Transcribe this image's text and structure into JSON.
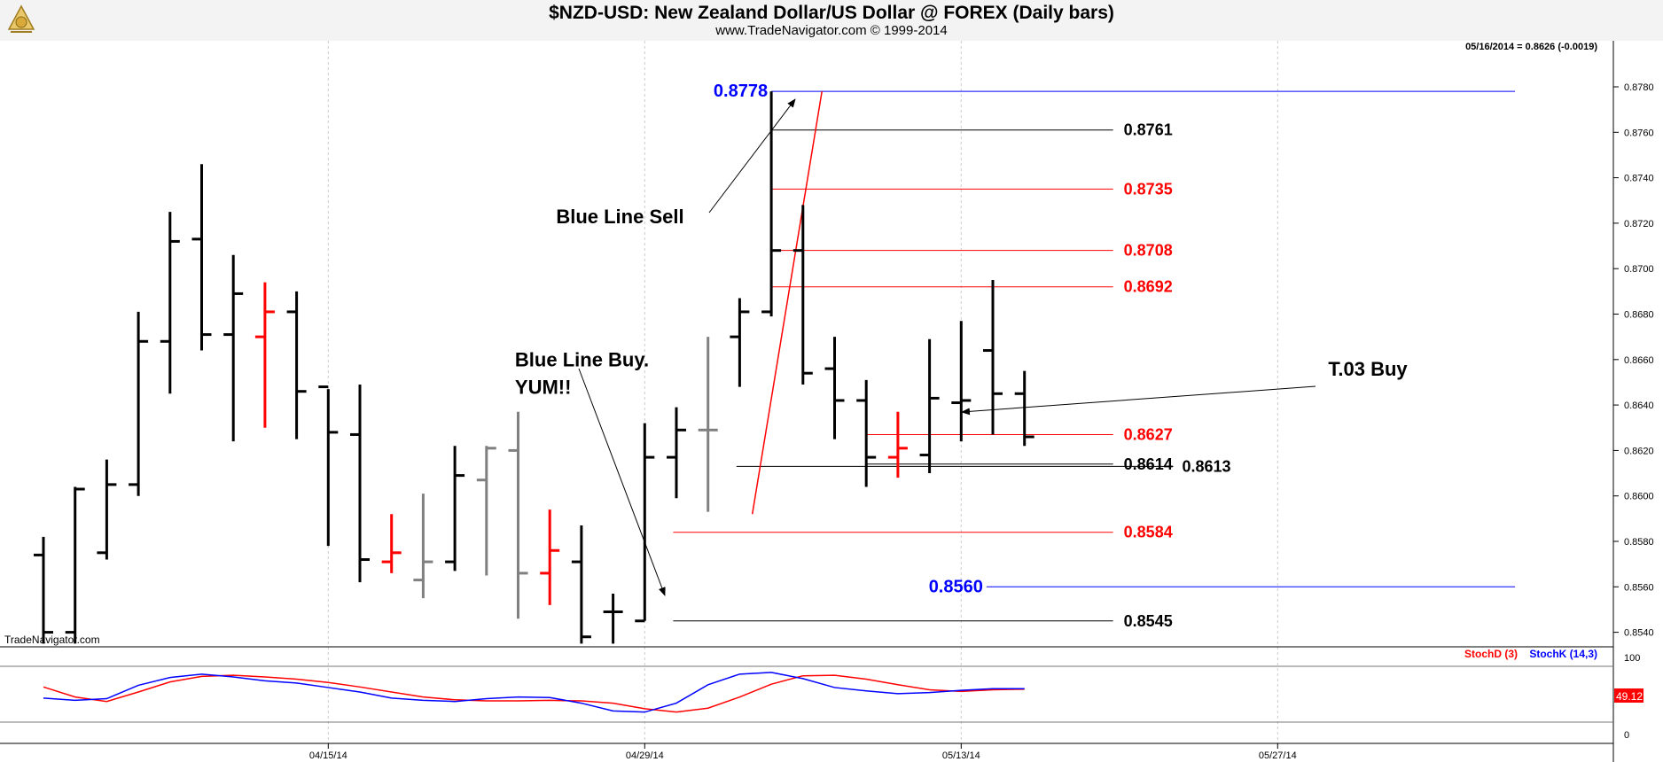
{
  "header": {
    "title": "$NZD-USD:  New Zealand Dollar/US Dollar @ FOREX  (Daily bars)",
    "subtitle": "www.TradeNavigator.com © 1999-2014",
    "last_quote": "05/16/2014 = 0.8626 (-0.0019)",
    "watermark": "TradeNavigator.com"
  },
  "chart_data": [
    {
      "type": "ohlc",
      "title": "$NZD-USD:  New Zealand Dollar/US Dollar @ FOREX  (Daily bars)",
      "ylim": [
        0.8535,
        0.8795
      ],
      "yticks": [
        "0.8540",
        "0.8560",
        "0.8580",
        "0.8600",
        "0.8620",
        "0.8640",
        "0.8660",
        "0.8680",
        "0.8700",
        "0.8720",
        "0.8740",
        "0.8760",
        "0.8780"
      ],
      "xticks": [
        {
          "label": "04/15/14",
          "day": 9
        },
        {
          "label": "04/29/14",
          "day": 19
        },
        {
          "label": "05/13/14",
          "day": 29
        },
        {
          "label": "05/27/14",
          "day": 39
        }
      ],
      "bars": [
        {
          "o": 0.8574,
          "h": 0.8582,
          "l": 0.8535,
          "c": 0.854,
          "color": "black"
        },
        {
          "o": 0.854,
          "h": 0.8604,
          "l": 0.8535,
          "c": 0.8603,
          "color": "black"
        },
        {
          "o": 0.8575,
          "h": 0.8616,
          "l": 0.8572,
          "c": 0.8605,
          "color": "black"
        },
        {
          "o": 0.8605,
          "h": 0.8681,
          "l": 0.86,
          "c": 0.8668,
          "color": "black"
        },
        {
          "o": 0.8668,
          "h": 0.8725,
          "l": 0.8645,
          "c": 0.8712,
          "color": "black"
        },
        {
          "o": 0.8713,
          "h": 0.8746,
          "l": 0.8664,
          "c": 0.8671,
          "color": "black"
        },
        {
          "o": 0.8671,
          "h": 0.8706,
          "l": 0.8624,
          "c": 0.8689,
          "color": "black"
        },
        {
          "o": 0.867,
          "h": 0.8694,
          "l": 0.863,
          "c": 0.8681,
          "color": "red"
        },
        {
          "o": 0.8681,
          "h": 0.869,
          "l": 0.8625,
          "c": 0.8646,
          "color": "black"
        },
        {
          "o": 0.8648,
          "h": 0.8647,
          "l": 0.8578,
          "c": 0.8628,
          "color": "black"
        },
        {
          "o": 0.8627,
          "h": 0.8649,
          "l": 0.8562,
          "c": 0.8572,
          "color": "black"
        },
        {
          "o": 0.8571,
          "h": 0.8592,
          "l": 0.8566,
          "c": 0.8575,
          "color": "red"
        },
        {
          "o": 0.8563,
          "h": 0.8601,
          "l": 0.8555,
          "c": 0.8571,
          "color": "gray"
        },
        {
          "o": 0.8571,
          "h": 0.8622,
          "l": 0.8567,
          "c": 0.8609,
          "color": "black"
        },
        {
          "o": 0.8607,
          "h": 0.8622,
          "l": 0.8565,
          "c": 0.8621,
          "color": "gray"
        },
        {
          "o": 0.862,
          "h": 0.8637,
          "l": 0.8546,
          "c": 0.8566,
          "color": "gray"
        },
        {
          "o": 0.8566,
          "h": 0.8594,
          "l": 0.8552,
          "c": 0.8576,
          "color": "red"
        },
        {
          "o": 0.8571,
          "h": 0.8587,
          "l": 0.8535,
          "c": 0.8538,
          "color": "black"
        },
        {
          "o": 0.8549,
          "h": 0.8557,
          "l": 0.8535,
          "c": 0.8549,
          "color": "black"
        },
        {
          "o": 0.8545,
          "h": 0.8632,
          "l": 0.8545,
          "c": 0.8617,
          "color": "black"
        },
        {
          "o": 0.8617,
          "h": 0.8639,
          "l": 0.8599,
          "c": 0.8629,
          "color": "black"
        },
        {
          "o": 0.8629,
          "h": 0.867,
          "l": 0.8593,
          "c": 0.8629,
          "color": "gray"
        },
        {
          "o": 0.867,
          "h": 0.8687,
          "l": 0.8648,
          "c": 0.8681,
          "color": "black"
        },
        {
          "o": 0.8681,
          "h": 0.8778,
          "l": 0.8679,
          "c": 0.8708,
          "color": "black"
        },
        {
          "o": 0.8708,
          "h": 0.8728,
          "l": 0.8649,
          "c": 0.8654,
          "color": "black"
        },
        {
          "o": 0.8656,
          "h": 0.867,
          "l": 0.8625,
          "c": 0.8642,
          "color": "black"
        },
        {
          "o": 0.8642,
          "h": 0.8651,
          "l": 0.8604,
          "c": 0.8617,
          "color": "black"
        },
        {
          "o": 0.8617,
          "h": 0.8637,
          "l": 0.8608,
          "c": 0.8621,
          "color": "red"
        },
        {
          "o": 0.8618,
          "h": 0.8669,
          "l": 0.861,
          "c": 0.8643,
          "color": "black"
        },
        {
          "o": 0.8641,
          "h": 0.8677,
          "l": 0.8624,
          "c": 0.8642,
          "color": "black"
        },
        {
          "o": 0.8664,
          "h": 0.8695,
          "l": 0.8627,
          "c": 0.8645,
          "color": "black"
        },
        {
          "o": 0.8645,
          "h": 0.8655,
          "l": 0.8622,
          "c": 0.8626,
          "color": "black"
        }
      ],
      "levels": [
        {
          "value": 0.8778,
          "label": "0.8778",
          "color": "#0000ff",
          "from_day": 23,
          "to_day": 46.5,
          "label_side": "left"
        },
        {
          "value": 0.8761,
          "label": "0.8761",
          "color": "#000000",
          "from_day": 23,
          "to_day": 33.8,
          "label_side": "right"
        },
        {
          "value": 0.8735,
          "label": "0.8735",
          "color": "#ff0000",
          "from_day": 23,
          "to_day": 33.8,
          "label_side": "right"
        },
        {
          "value": 0.8708,
          "label": "0.8708",
          "color": "#ff0000",
          "from_day": 23,
          "to_day": 33.8,
          "label_side": "right"
        },
        {
          "value": 0.8692,
          "label": "0.8692",
          "color": "#ff0000",
          "from_day": 23,
          "to_day": 33.8,
          "label_side": "right"
        },
        {
          "value": 0.8627,
          "label": "0.8627",
          "color": "#ff0000",
          "from_day": 26,
          "to_day": 33.8,
          "label_side": "right"
        },
        {
          "value": 0.8614,
          "label": "0.8614",
          "color": "#000000",
          "from_day": 26,
          "to_day": 33.8,
          "label_side": "right"
        },
        {
          "value": 0.8613,
          "label": "0.8613",
          "color": "#000000",
          "from_day": 21.9,
          "to_day": 35.7,
          "label_side": "far"
        },
        {
          "value": 0.8584,
          "label": "0.8584",
          "color": "#ff0000",
          "from_day": 19.9,
          "to_day": 33.8,
          "label_side": "right"
        },
        {
          "value": 0.856,
          "label": "0.8560",
          "color": "#0000ff",
          "from_day": 29.8,
          "to_day": 46.5,
          "label_side": "left"
        },
        {
          "value": 0.8545,
          "label": "0.8545",
          "color": "#000000",
          "from_day": 19.9,
          "to_day": 33.8,
          "label_side": "right"
        }
      ],
      "annotations": [
        {
          "text": "Blue Line Sell",
          "day": 16.2,
          "value": 0.872,
          "color": "#000000"
        },
        {
          "text": "Blue Line Buy.",
          "day": 14.9,
          "value": 0.8657,
          "color": "#000000"
        },
        {
          "text": "YUM!!",
          "day": 14.9,
          "value": 0.8645,
          "color": "#000000"
        },
        {
          "text": "T.03 Buy",
          "day": 40.6,
          "value": 0.8653,
          "color": "#000000"
        }
      ],
      "trend_line": {
        "from": {
          "day": 22.4,
          "value": 0.8592
        },
        "to": {
          "day": 24.6,
          "value": 0.8778
        },
        "color": "#ff0000"
      }
    },
    {
      "type": "line",
      "title": "Stochastic",
      "ylim": [
        0,
        100
      ],
      "yticks": [
        "0",
        "100"
      ],
      "legend": [
        "StochD (3)",
        "StochK (14,3)"
      ],
      "series": [
        {
          "name": "StochD (3)",
          "color": "#ff0000",
          "values": [
            63,
            45,
            37,
            54,
            72,
            82,
            84,
            81,
            77,
            71,
            63,
            54,
            45,
            40,
            38,
            38,
            39,
            38,
            34,
            24,
            18,
            25,
            45,
            68,
            83,
            84,
            77,
            67,
            58,
            55,
            58,
            59
          ]
        },
        {
          "name": "StochK (14,3)",
          "color": "#0000ff",
          "values": [
            43,
            39,
            42,
            66,
            80,
            86,
            81,
            74,
            70,
            62,
            54,
            43,
            39,
            37,
            42,
            45,
            44,
            34,
            20,
            18,
            34,
            67,
            86,
            89,
            78,
            62,
            56,
            51,
            53,
            57,
            60,
            60
          ]
        }
      ],
      "last_value": "49.12"
    }
  ]
}
